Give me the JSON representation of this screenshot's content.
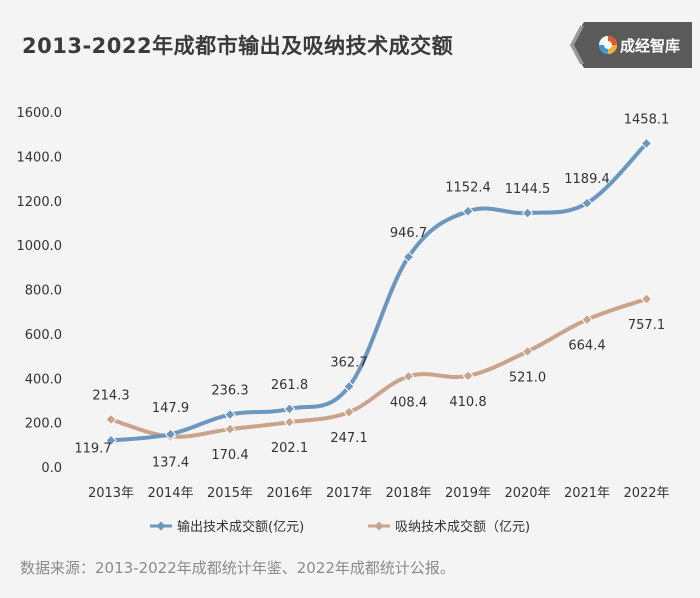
{
  "title": "2013-2022年成都市输出及吸纳技术成交额",
  "brand": {
    "name": "成经智库",
    "logo_icon": "chengjing-logo-icon"
  },
  "source": "数据来源：2013-2022年成都统计年鉴、2022年成都统计公报。",
  "colors": {
    "series1": "#6b96bf",
    "series2": "#c9a38a",
    "brand_bg": "#5a5a5a",
    "source_text": "#8a8a8a"
  },
  "chart_data": {
    "type": "line",
    "title": "2013-2022年成都市输出及吸纳技术成交额",
    "xlabel": "",
    "ylabel": "",
    "ylim": [
      0,
      1600
    ],
    "y_ticks": [
      "1600.0",
      "1400.0",
      "1200.0",
      "1000.0",
      "800.0",
      "600.0",
      "400.0",
      "200.0",
      "0.0"
    ],
    "y_tick_values": [
      1600,
      1400,
      1200,
      1000,
      800,
      600,
      400,
      200,
      0
    ],
    "categories": [
      "2013年",
      "2014年",
      "2015年",
      "2016年",
      "2017年",
      "2018年",
      "2019年",
      "2020年",
      "2021年",
      "2022年"
    ],
    "legend_position": "bottom",
    "grid": false,
    "series": [
      {
        "name": "输出技术成交额(亿元)",
        "values": [
          119.7,
          147.9,
          236.3,
          261.8,
          362.7,
          946.7,
          1152.4,
          1144.5,
          1189.4,
          1458.1
        ],
        "labels": [
          "119.7",
          "147.9",
          "236.3",
          "261.8",
          "362.7",
          "946.7",
          "1152.4",
          "1144.5",
          "1189.4",
          "1458.1"
        ]
      },
      {
        "name": "吸纳技术成交额（亿元)",
        "values": [
          214.3,
          137.4,
          170.4,
          202.1,
          247.1,
          408.4,
          410.8,
          521.0,
          664.4,
          757.1
        ],
        "labels": [
          "214.3",
          "137.4",
          "170.4",
          "202.1",
          "247.1",
          "408.4",
          "410.8",
          "521.0",
          "664.4",
          "757.1"
        ]
      }
    ]
  }
}
